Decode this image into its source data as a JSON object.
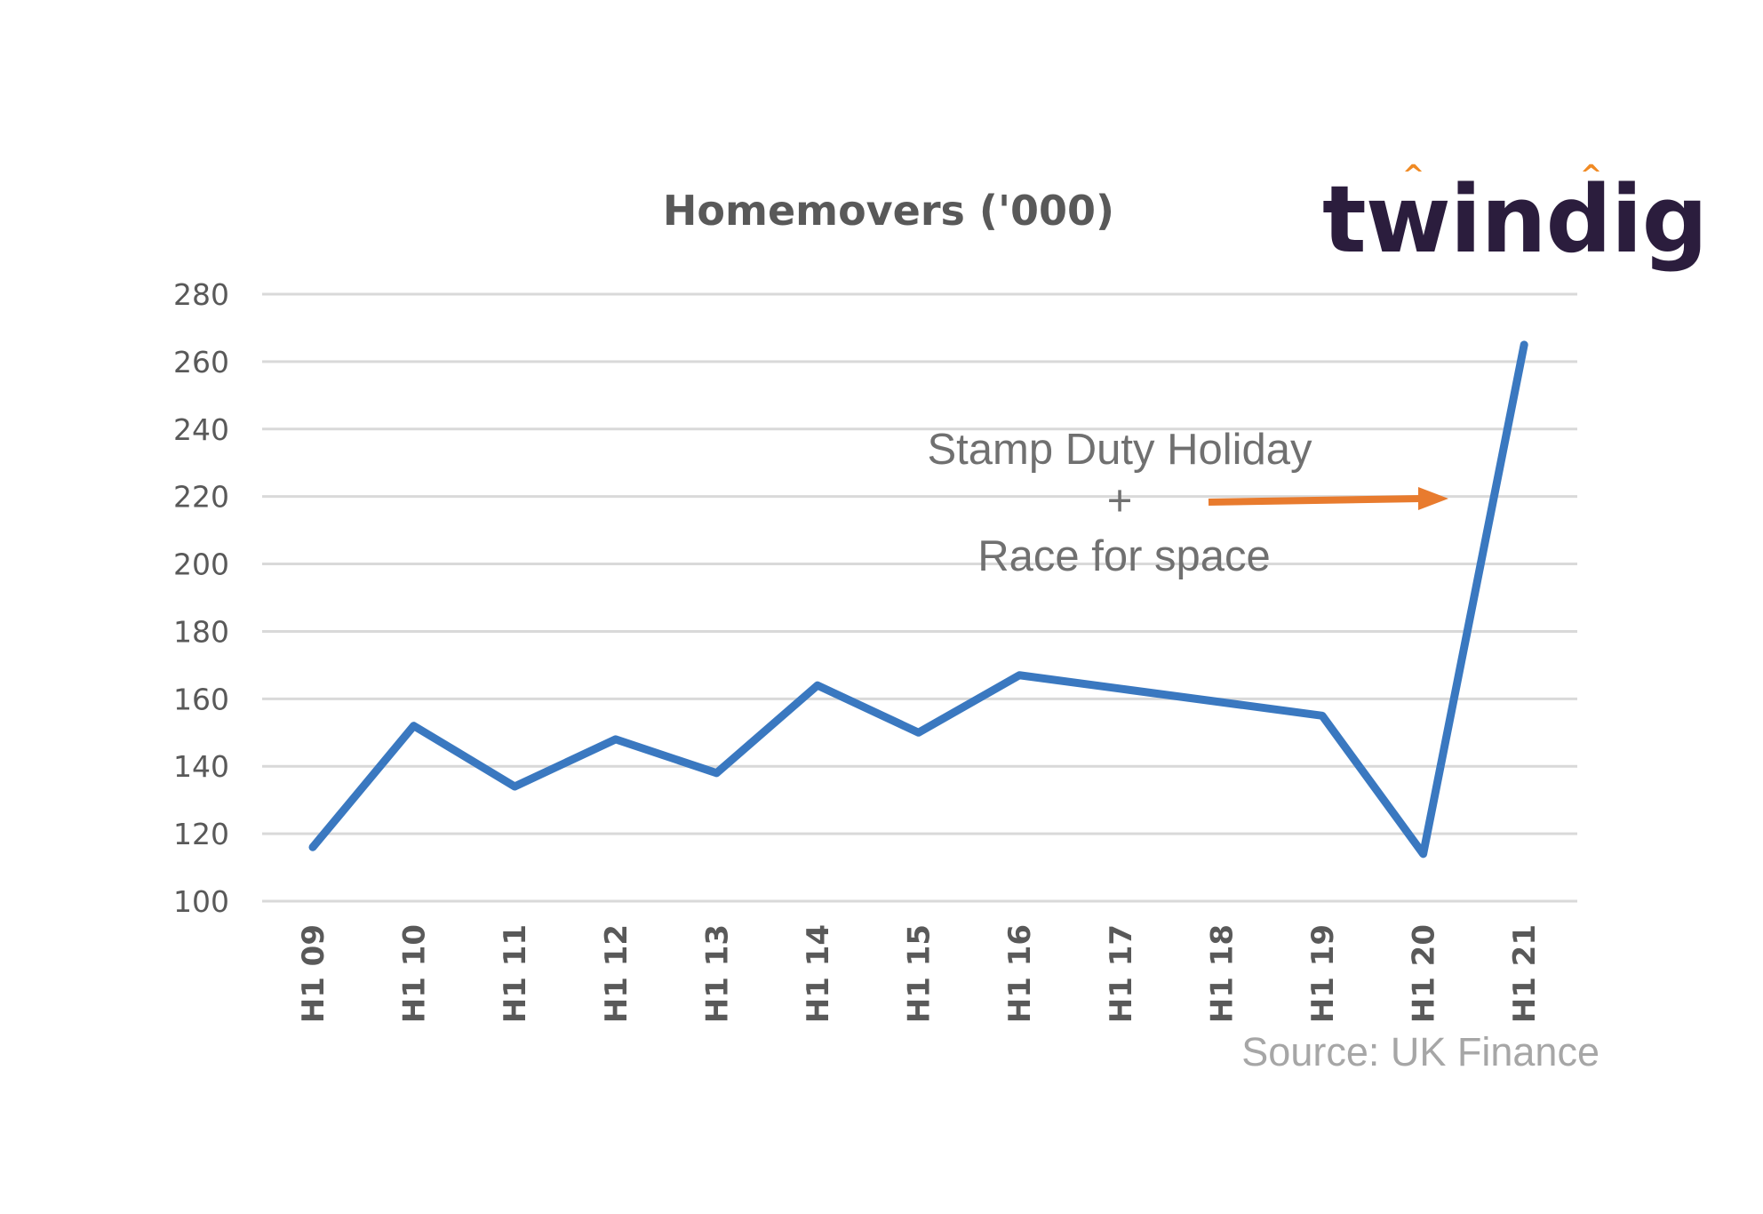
{
  "chart_data": {
    "type": "line",
    "title": "Homemovers ('000)",
    "categories": [
      "H1 09",
      "H1 10",
      "H1 11",
      "H1 12",
      "H1 13",
      "H1 14",
      "H1 15",
      "H1 16",
      "H1 17",
      "H1 18",
      "H1 19",
      "H1 20",
      "H1 21"
    ],
    "series": [
      {
        "values": [
          116,
          152,
          134,
          148,
          138,
          164,
          150,
          167,
          163,
          159,
          155,
          114,
          265
        ]
      }
    ],
    "ylim": [
      100,
      280
    ],
    "yticks": [
      100,
      120,
      140,
      160,
      180,
      200,
      220,
      240,
      260,
      280
    ],
    "xlabel": "",
    "ylabel": "",
    "grid": true,
    "line_color": "#3a78c0",
    "annotations": {
      "line1": "Stamp Duty Holiday",
      "line2": "+",
      "line3": "Race for space",
      "arrow_color": "#e87b2e"
    }
  },
  "logo": {
    "text": "twindig",
    "accent_color": "#f08a24"
  },
  "source": "Source: UK Finance"
}
